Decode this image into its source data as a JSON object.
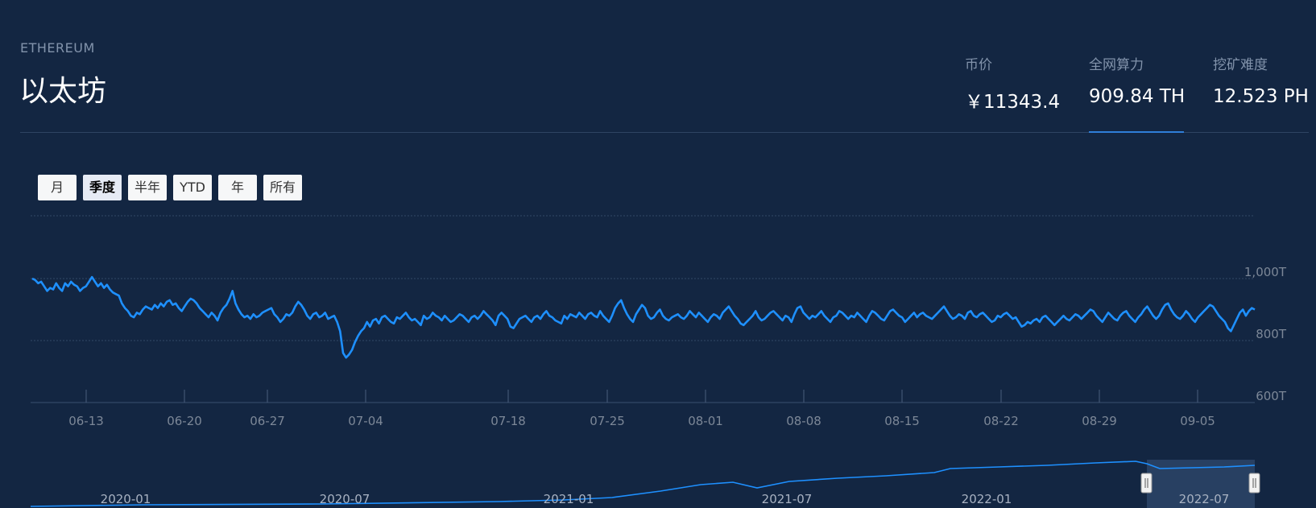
{
  "header": {
    "coin_en": "ETHEREUM",
    "coin_name": "以太坊",
    "stats": [
      {
        "label": "币价",
        "value": "￥11343.4"
      },
      {
        "label": "全网算力",
        "value": "909.84 TH"
      },
      {
        "label": "挖矿难度",
        "value": "12.523 PH"
      }
    ],
    "active_stat": "全网算力"
  },
  "range_buttons": [
    {
      "label": "月",
      "active": false
    },
    {
      "label": "季度",
      "active": true
    },
    {
      "label": "半年",
      "active": false
    },
    {
      "label": "YTD",
      "active": false
    },
    {
      "label": "年",
      "active": false
    },
    {
      "label": "所有",
      "active": false
    }
  ],
  "colors": {
    "background": "#132642",
    "line": "#1e90ff",
    "navigator_fill": "#2b4466"
  },
  "chart_data": {
    "type": "line",
    "series": [
      {
        "values": [
          1000,
          995,
          985,
          990,
          975,
          960,
          970,
          965,
          985,
          970,
          960,
          985,
          975,
          990,
          980,
          975,
          960,
          970,
          975,
          990,
          1005,
          990,
          975,
          985,
          970,
          980,
          965,
          955,
          950,
          945,
          920,
          905,
          895,
          880,
          875,
          890,
          885,
          900,
          910,
          905,
          900,
          915,
          905,
          920,
          910,
          925,
          930,
          915,
          920,
          905,
          895,
          910,
          925,
          935,
          930,
          920,
          905,
          895,
          885,
          875,
          890,
          880,
          865,
          890,
          905,
          915,
          935,
          960,
          920,
          900,
          885,
          875,
          880,
          870,
          885,
          875,
          880,
          890,
          895,
          900,
          905,
          885,
          875,
          860,
          870,
          885,
          880,
          890,
          910,
          925,
          915,
          900,
          880,
          870,
          885,
          890,
          875,
          880,
          890,
          870,
          875,
          880,
          860,
          830,
          760,
          745,
          755,
          770,
          795,
          815,
          830,
          840,
          860,
          845,
          865,
          870,
          855,
          875,
          880,
          870,
          860,
          855,
          875,
          870,
          880,
          890,
          875,
          865,
          870,
          860,
          850,
          880,
          870,
          875,
          890,
          880,
          875,
          865,
          880,
          870,
          860,
          865,
          875,
          885,
          880,
          870,
          860,
          875,
          880,
          870,
          880,
          895,
          885,
          875,
          865,
          850,
          880,
          890,
          880,
          870,
          845,
          840,
          855,
          870,
          875,
          880,
          870,
          860,
          875,
          880,
          870,
          885,
          895,
          880,
          875,
          865,
          860,
          855,
          880,
          870,
          885,
          880,
          875,
          890,
          880,
          870,
          885,
          890,
          880,
          875,
          895,
          880,
          870,
          860,
          880,
          905,
          920,
          930,
          905,
          885,
          870,
          860,
          885,
          900,
          915,
          905,
          880,
          870,
          875,
          890,
          900,
          880,
          870,
          865,
          875,
          880,
          885,
          875,
          870,
          880,
          895,
          885,
          875,
          890,
          880,
          870,
          860,
          875,
          885,
          880,
          870,
          890,
          900,
          910,
          895,
          880,
          870,
          855,
          850,
          860,
          870,
          880,
          895,
          875,
          865,
          870,
          880,
          890,
          895,
          885,
          875,
          865,
          880,
          875,
          860,
          885,
          905,
          910,
          890,
          880,
          870,
          880,
          875,
          885,
          895,
          880,
          870,
          860,
          875,
          880,
          895,
          890,
          880,
          870,
          880,
          875,
          890,
          880,
          870,
          860,
          880,
          895,
          890,
          880,
          870,
          865,
          880,
          895,
          900,
          890,
          880,
          875,
          860,
          870,
          880,
          890,
          875,
          885,
          890,
          880,
          875,
          870,
          880,
          890,
          900,
          910,
          895,
          880,
          870,
          875,
          885,
          880,
          870,
          890,
          895,
          880,
          875,
          885,
          890,
          880,
          870,
          860,
          865,
          880,
          875,
          885,
          890,
          880,
          870,
          875,
          860,
          845,
          850,
          860,
          855,
          865,
          870,
          860,
          875,
          880,
          870,
          860,
          850,
          860,
          870,
          880,
          870,
          865,
          875,
          885,
          880,
          870,
          880,
          890,
          900,
          895,
          880,
          870,
          860,
          875,
          890,
          880,
          870,
          865,
          880,
          890,
          895,
          880,
          870,
          860,
          875,
          885,
          900,
          910,
          895,
          880,
          870,
          880,
          900,
          915,
          920,
          900,
          885,
          875,
          870,
          880,
          895,
          885,
          870,
          860,
          875,
          885,
          895,
          905,
          915,
          910,
          895,
          880,
          870,
          860,
          840,
          830,
          850,
          870,
          890,
          900,
          880,
          895,
          905,
          900
        ]
      }
    ],
    "x_ticks": [
      "06-13",
      "06-20",
      "06-27",
      "07-04",
      "07-18",
      "07-25",
      "08-01",
      "08-08",
      "08-15",
      "08-22",
      "08-29",
      "09-05"
    ],
    "y_ticks": [
      "1,000T",
      "800T",
      "600T"
    ],
    "ylim": [
      600,
      1100
    ],
    "navigator_ticks": [
      "2020-01",
      "2020-07",
      "2021-01",
      "2021-07",
      "2022-01",
      "2022-07"
    ]
  }
}
